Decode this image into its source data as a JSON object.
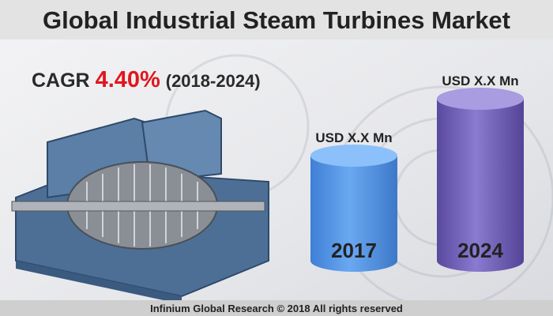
{
  "header": {
    "title": "Global Industrial Steam Turbines Market"
  },
  "cagr": {
    "label": "CAGR",
    "value": "4.40%",
    "period": "(2018-2024)"
  },
  "cylinders": [
    {
      "caption": "USD X.X Mn",
      "year": "2017"
    },
    {
      "caption": "USD X.X Mn",
      "year": "2024"
    }
  ],
  "footer": {
    "text": "Infinium Global Research © 2018 All rights reserved"
  }
}
